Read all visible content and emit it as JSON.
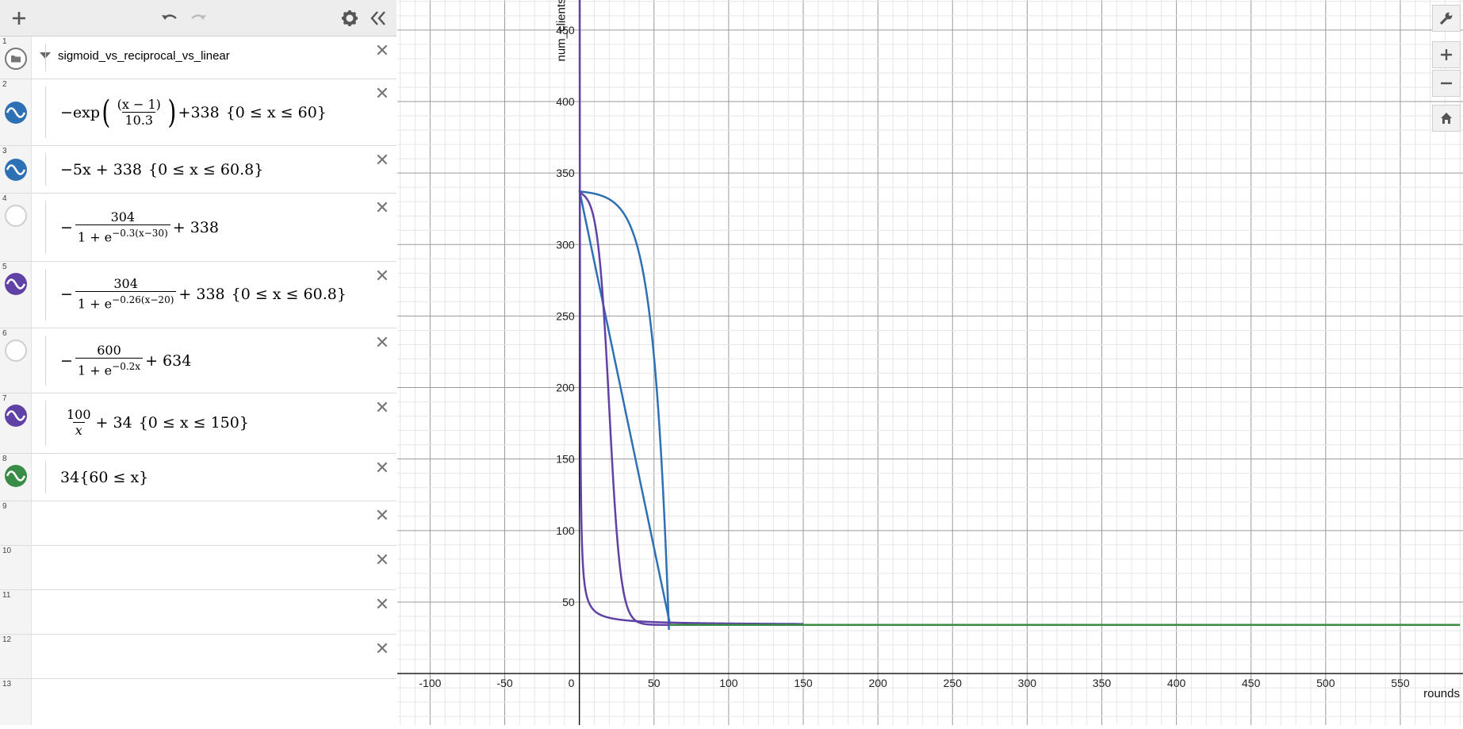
{
  "toolbar": {
    "add_icon": "plus-icon",
    "undo_icon": "undo-icon",
    "redo_icon": "redo-icon",
    "settings_icon": "gear-icon",
    "collapse_icon": "double-chevron-left-icon"
  },
  "folder": {
    "row": "1",
    "title": "sigmoid_vs_reciprocal_vs_linear"
  },
  "rows": [
    "1",
    "2",
    "3",
    "4",
    "5",
    "6",
    "7",
    "8",
    "9",
    "10",
    "11",
    "12",
    "13"
  ],
  "expressions": [
    {
      "row": "2",
      "color": "#2d70b3",
      "visible": true,
      "parts": {
        "a": "−exp",
        "num": "(x − 1)",
        "den": "10.3",
        "b": "+338",
        "domain": "{0 ≤ x ≤ 60}"
      }
    },
    {
      "row": "3",
      "color": "#2d70b3",
      "visible": true,
      "parts": {
        "a": "−5x + 338",
        "domain": "{0 ≤ x ≤ 60.8}"
      }
    },
    {
      "row": "4",
      "color": "#cfcfcf",
      "visible": false,
      "parts": {
        "a": "−",
        "num": "304",
        "den_base": "1 + e",
        "den_exp": "−0.3(x−30)",
        "b": "+ 338"
      }
    },
    {
      "row": "5",
      "color": "#6042a6",
      "visible": true,
      "parts": {
        "a": "−",
        "num": "304",
        "den_base": "1 + e",
        "den_exp": "−0.26(x−20)",
        "b": "+ 338",
        "domain": "{0 ≤ x ≤ 60.8}"
      }
    },
    {
      "row": "6",
      "color": "#cfcfcf",
      "visible": false,
      "parts": {
        "a": "−",
        "num": "600",
        "den_base": "1 + e",
        "den_exp": "−0.2x",
        "b": "+ 634"
      }
    },
    {
      "row": "7",
      "color": "#6042a6",
      "visible": true,
      "parts": {
        "num": "100",
        "den": "x",
        "b": "+ 34",
        "domain": "{0 ≤ x ≤ 150}"
      }
    },
    {
      "row": "8",
      "color": "#388c46",
      "visible": true,
      "parts": {
        "a": "34",
        "domain": "{60 ≤ x}"
      }
    }
  ],
  "delete_icon": "close-icon",
  "graph": {
    "x_axis_label": "rounds",
    "y_axis_label": "num_clients",
    "x_ticks": [
      "-100",
      "-50",
      "0",
      "50",
      "100",
      "150",
      "200",
      "250",
      "300",
      "350",
      "400",
      "450",
      "500",
      "550"
    ],
    "y_ticks": [
      "50",
      "100",
      "150",
      "200",
      "250",
      "300",
      "350",
      "400",
      "450"
    ],
    "xlim": [
      -122,
      592
    ],
    "ylim": [
      -36,
      471
    ],
    "grid": true,
    "colors": {
      "blue": "#2d70b3",
      "purple": "#6042a6",
      "green": "#388c46"
    }
  },
  "zoom_controls": {
    "wrench_icon": "wrench-icon",
    "zoom_in_icon": "plus-icon",
    "zoom_out_icon": "minus-icon",
    "home_icon": "home-icon"
  }
}
